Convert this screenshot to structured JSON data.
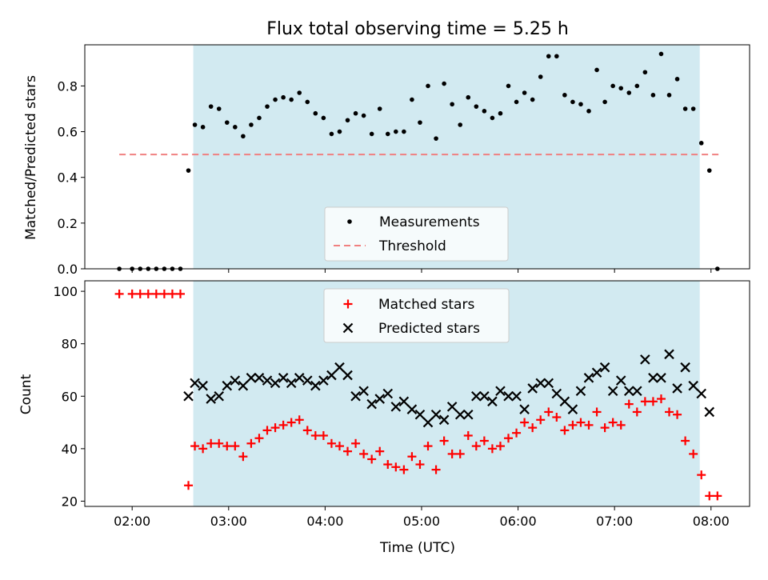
{
  "chart_data": {
    "type": "scatter",
    "title": "Flux total observing time = 5.25 h",
    "xlabel": "Time (UTC)",
    "xticks": [
      "02:00",
      "03:00",
      "04:00",
      "05:00",
      "06:00",
      "07:00",
      "08:00"
    ],
    "colors": {
      "shade": "#add8e6",
      "measurement": "#000000",
      "threshold": "#f08080",
      "matched": "#ff0000",
      "predicted": "#000000"
    },
    "panels": [
      {
        "name": "top",
        "ylabel": "Matched/Predicted stars",
        "ylim": [
          0,
          0.98
        ],
        "yticks": [
          "0.0",
          "0.2",
          "0.4",
          "0.6",
          "0.8"
        ],
        "ytick_values": [
          0,
          0.2,
          0.4,
          0.6,
          0.8
        ],
        "shaded_span": [
          "02:38",
          "07:53"
        ],
        "legend": {
          "placement": "lower-center",
          "entries": [
            "Measurements",
            "Threshold"
          ]
        },
        "threshold": {
          "name": "Threshold",
          "y": 0.5,
          "x_range": [
            "01:52",
            "08:05"
          ]
        },
        "measurements": {
          "name": "Measurements",
          "x": [
            "01:52",
            "02:00",
            "02:05",
            "02:10",
            "02:15",
            "02:20",
            "02:25",
            "02:30",
            "02:35",
            "02:39",
            "02:44",
            "02:49",
            "02:54",
            "02:59",
            "03:04",
            "03:09",
            "03:14",
            "03:19",
            "03:24",
            "03:29",
            "03:34",
            "03:39",
            "03:44",
            "03:49",
            "03:54",
            "03:59",
            "04:04",
            "04:09",
            "04:14",
            "04:19",
            "04:24",
            "04:29",
            "04:34",
            "04:39",
            "04:44",
            "04:49",
            "04:54",
            "04:59",
            "05:04",
            "05:09",
            "05:14",
            "05:19",
            "05:24",
            "05:29",
            "05:34",
            "05:39",
            "05:44",
            "05:49",
            "05:54",
            "05:59",
            "06:04",
            "06:09",
            "06:14",
            "06:19",
            "06:24",
            "06:29",
            "06:34",
            "06:39",
            "06:44",
            "06:49",
            "06:54",
            "06:59",
            "07:04",
            "07:09",
            "07:14",
            "07:19",
            "07:24",
            "07:29",
            "07:34",
            "07:39",
            "07:44",
            "07:49",
            "07:54",
            "07:59",
            "08:04"
          ],
          "y": [
            0.0,
            0.0,
            0.0,
            0.0,
            0.0,
            0.0,
            0.0,
            0.0,
            0.43,
            0.63,
            0.62,
            0.71,
            0.7,
            0.64,
            0.62,
            0.58,
            0.63,
            0.66,
            0.71,
            0.74,
            0.75,
            0.74,
            0.77,
            0.73,
            0.68,
            0.66,
            0.59,
            0.6,
            0.65,
            0.68,
            0.67,
            0.59,
            0.7,
            0.59,
            0.6,
            0.6,
            0.74,
            0.64,
            0.8,
            0.57,
            0.81,
            0.72,
            0.63,
            0.75,
            0.71,
            0.69,
            0.66,
            0.68,
            0.8,
            0.73,
            0.77,
            0.74,
            0.84,
            0.93,
            0.93,
            0.76,
            0.73,
            0.72,
            0.69,
            0.87,
            0.73,
            0.8,
            0.79,
            0.77,
            0.8,
            0.86,
            0.76,
            0.94,
            0.76,
            0.83,
            0.7,
            0.7,
            0.55,
            0.43,
            0.0
          ]
        }
      },
      {
        "name": "bottom",
        "ylabel": "Count",
        "ylim": [
          18,
          104
        ],
        "yticks": [
          "20",
          "40",
          "60",
          "80",
          "100"
        ],
        "ytick_values": [
          20,
          40,
          60,
          80,
          100
        ],
        "shaded_span": [
          "02:38",
          "07:53"
        ],
        "legend": {
          "placement": "upper-center",
          "entries": [
            "Matched stars",
            "Predicted stars"
          ]
        },
        "series": [
          {
            "name": "Matched stars",
            "marker": "+",
            "x": [
              "01:52",
              "02:00",
              "02:05",
              "02:10",
              "02:15",
              "02:20",
              "02:25",
              "02:30",
              "02:35",
              "02:39",
              "02:44",
              "02:49",
              "02:54",
              "02:59",
              "03:04",
              "03:09",
              "03:14",
              "03:19",
              "03:24",
              "03:29",
              "03:34",
              "03:39",
              "03:44",
              "03:49",
              "03:54",
              "03:59",
              "04:04",
              "04:09",
              "04:14",
              "04:19",
              "04:24",
              "04:29",
              "04:34",
              "04:39",
              "04:44",
              "04:49",
              "04:54",
              "04:59",
              "05:04",
              "05:09",
              "05:14",
              "05:19",
              "05:24",
              "05:29",
              "05:34",
              "05:39",
              "05:44",
              "05:49",
              "05:54",
              "05:59",
              "06:04",
              "06:09",
              "06:14",
              "06:19",
              "06:24",
              "06:29",
              "06:34",
              "06:39",
              "06:44",
              "06:49",
              "06:54",
              "06:59",
              "07:04",
              "07:09",
              "07:14",
              "07:19",
              "07:24",
              "07:29",
              "07:34",
              "07:39",
              "07:44",
              "07:49",
              "07:54",
              "07:59",
              "08:04"
            ],
            "y": [
              99,
              99,
              99,
              99,
              99,
              99,
              99,
              99,
              26,
              41,
              40,
              42,
              42,
              41,
              41,
              37,
              42,
              44,
              47,
              48,
              49,
              50,
              51,
              47,
              45,
              45,
              42,
              41,
              39,
              42,
              38,
              36,
              39,
              34,
              33,
              32,
              37,
              34,
              41,
              32,
              43,
              38,
              38,
              45,
              41,
              43,
              40,
              41,
              44,
              46,
              50,
              48,
              51,
              54,
              52,
              47,
              49,
              50,
              49,
              54,
              48,
              50,
              49,
              57,
              54,
              58,
              58,
              59,
              54,
              53,
              43,
              38,
              30,
              22,
              22
            ]
          },
          {
            "name": "Predicted stars",
            "marker": "x",
            "x": [
              "02:35",
              "02:39",
              "02:44",
              "02:49",
              "02:54",
              "02:59",
              "03:04",
              "03:09",
              "03:14",
              "03:19",
              "03:24",
              "03:29",
              "03:34",
              "03:39",
              "03:44",
              "03:49",
              "03:54",
              "03:59",
              "04:04",
              "04:09",
              "04:14",
              "04:19",
              "04:24",
              "04:29",
              "04:34",
              "04:39",
              "04:44",
              "04:49",
              "04:54",
              "04:59",
              "05:04",
              "05:09",
              "05:14",
              "05:19",
              "05:24",
              "05:29",
              "05:34",
              "05:39",
              "05:44",
              "05:49",
              "05:54",
              "05:59",
              "06:04",
              "06:09",
              "06:14",
              "06:19",
              "06:24",
              "06:29",
              "06:34",
              "06:39",
              "06:44",
              "06:49",
              "06:54",
              "06:59",
              "07:04",
              "07:09",
              "07:14",
              "07:19",
              "07:24",
              "07:29",
              "07:34",
              "07:39",
              "07:44",
              "07:49",
              "07:54",
              "07:59"
            ],
            "y": [
              60,
              65,
              64,
              59,
              60,
              64,
              66,
              64,
              67,
              67,
              66,
              65,
              67,
              65,
              67,
              66,
              64,
              66,
              68,
              71,
              68,
              60,
              62,
              57,
              59,
              61,
              56,
              58,
              55,
              53,
              50,
              53,
              51,
              56,
              53,
              53,
              60,
              60,
              58,
              62,
              60,
              60,
              55,
              63,
              65,
              65,
              61,
              58,
              55,
              62,
              67,
              69,
              71,
              62,
              66,
              62,
              62,
              74,
              67,
              67,
              76,
              63,
              71,
              64,
              61,
              54
            ]
          }
        ]
      }
    ]
  }
}
